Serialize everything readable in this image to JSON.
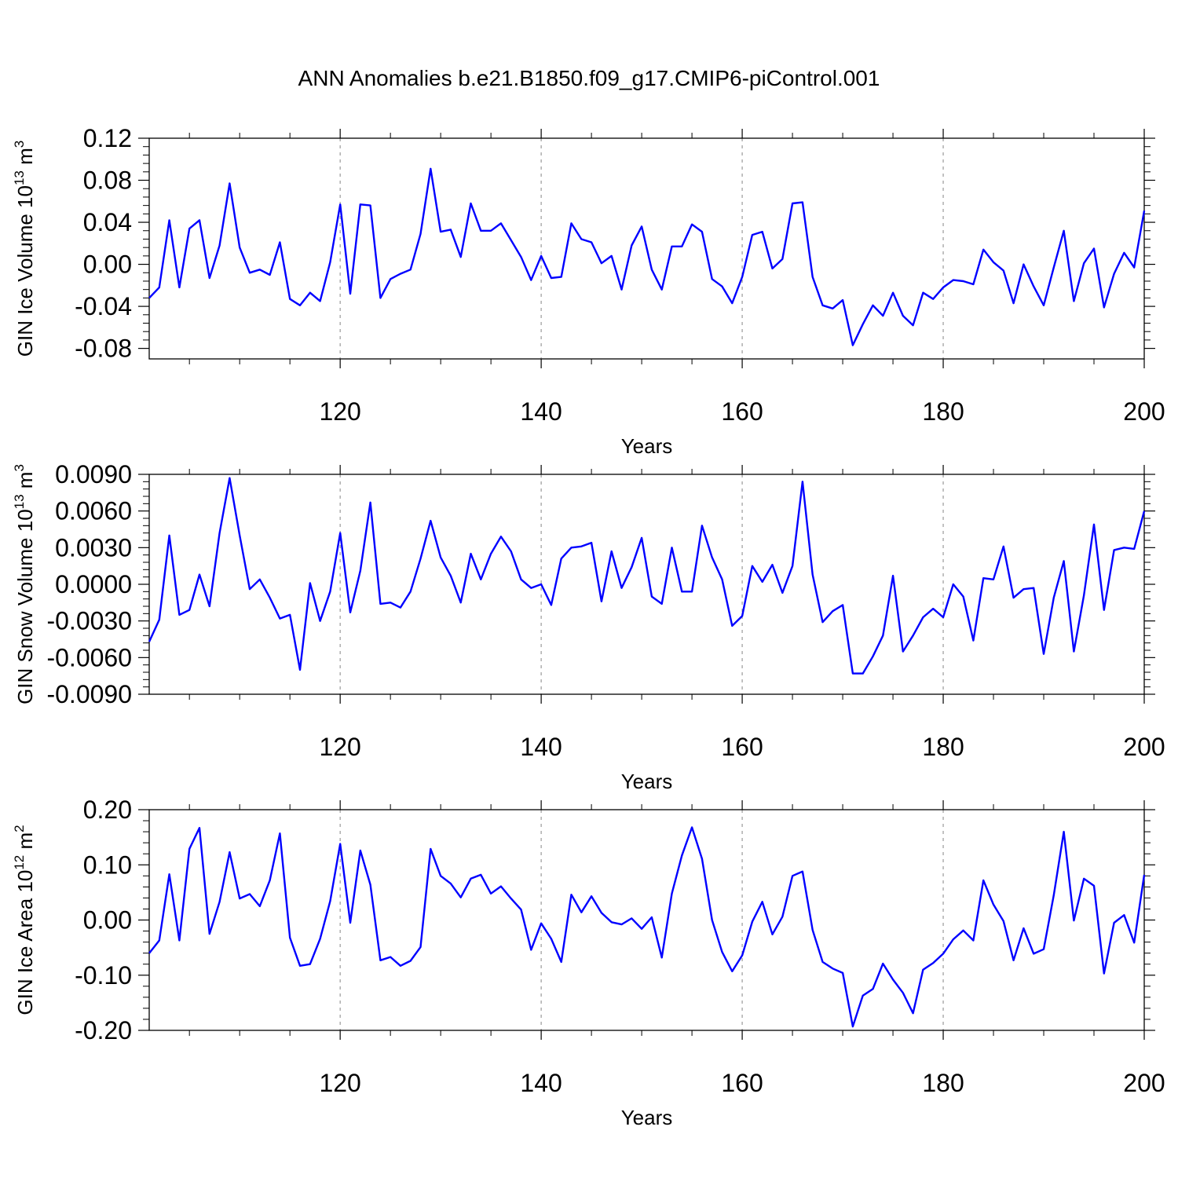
{
  "title": "ANN Anomalies b.e21.B1850.f09_g17.CMIP6-piControl.001",
  "chart_data": [
    {
      "type": "line",
      "ylabel": "GIN Ice Volume 10^13 m^3",
      "ylabel_base": "GIN Ice Volume 10",
      "ylabel_exp": "13",
      "ylabel_unit": " m",
      "ylabel_unit_exp": "3",
      "xlabel": "Years",
      "xlim": [
        101,
        200
      ],
      "ylim": [
        -0.09,
        0.12
      ],
      "xticks": [
        120,
        140,
        160,
        180,
        200
      ],
      "xtick_labels": [
        "120",
        "140",
        "160",
        "180",
        "200"
      ],
      "yticks": [
        -0.08,
        -0.04,
        0.0,
        0.04,
        0.08,
        0.12
      ],
      "ytick_labels": [
        "-0.08",
        "-0.04",
        "0.00",
        "0.04",
        "0.08",
        "0.12"
      ],
      "grid_x": [
        120,
        140,
        160,
        180
      ],
      "color": "#0000ff",
      "values": [
        -0.032,
        -0.022,
        0.042,
        -0.022,
        0.034,
        0.042,
        -0.013,
        0.018,
        0.077,
        0.016,
        -0.008,
        -0.005,
        -0.01,
        0.021,
        -0.033,
        -0.039,
        -0.027,
        -0.035,
        0.002,
        0.057,
        -0.028,
        0.057,
        0.056,
        -0.032,
        -0.014,
        -0.009,
        -0.005,
        0.029,
        0.091,
        0.031,
        0.033,
        0.007,
        0.058,
        0.032,
        0.032,
        0.039,
        0.023,
        0.007,
        -0.015,
        0.008,
        -0.013,
        -0.012,
        0.039,
        0.024,
        0.021,
        0.001,
        0.008,
        -0.024,
        0.018,
        0.036,
        -0.005,
        -0.024,
        0.017,
        0.017,
        0.038,
        0.031,
        -0.014,
        -0.021,
        -0.037,
        -0.012,
        0.028,
        0.031,
        -0.004,
        0.005,
        0.058,
        0.059,
        -0.012,
        -0.039,
        -0.042,
        -0.034,
        -0.077,
        -0.057,
        -0.039,
        -0.049,
        -0.027,
        -0.049,
        -0.058,
        -0.027,
        -0.033,
        -0.022,
        -0.015,
        -0.016,
        -0.019,
        0.014,
        0.002,
        -0.006,
        -0.037,
        0.0,
        -0.021,
        -0.039,
        -0.003,
        0.032,
        -0.035,
        0.001,
        0.015,
        -0.041,
        -0.009,
        0.011,
        -0.003,
        0.051
      ]
    },
    {
      "type": "line",
      "ylabel": "GIN Snow Volume 10^13 m^3",
      "ylabel_base": "GIN Snow Volume 10",
      "ylabel_exp": "13",
      "ylabel_unit": " m",
      "ylabel_unit_exp": "3",
      "xlabel": "Years",
      "xlim": [
        101,
        200
      ],
      "ylim": [
        -0.009,
        0.009
      ],
      "xticks": [
        120,
        140,
        160,
        180,
        200
      ],
      "xtick_labels": [
        "120",
        "140",
        "160",
        "180",
        "200"
      ],
      "yticks": [
        -0.009,
        -0.006,
        -0.003,
        0.0,
        0.003,
        0.006,
        0.009
      ],
      "ytick_labels": [
        "-0.0090",
        "-0.0060",
        "-0.0030",
        "0.0000",
        "0.0030",
        "0.0060",
        "0.0090"
      ],
      "grid_x": [
        120,
        140,
        160,
        180
      ],
      "color": "#0000ff",
      "values": [
        -0.0047,
        -0.0029,
        0.004,
        -0.0025,
        -0.0021,
        0.0008,
        -0.0018,
        0.0042,
        0.0087,
        0.004,
        -0.0004,
        0.0004,
        -0.0011,
        -0.0028,
        -0.0025,
        -0.007,
        0.0001,
        -0.003,
        -0.0006,
        0.0042,
        -0.0023,
        0.0011,
        0.0067,
        -0.0016,
        -0.0015,
        -0.0019,
        -0.0006,
        0.0021,
        0.0052,
        0.0022,
        0.0007,
        -0.0015,
        0.0025,
        0.0004,
        0.0025,
        0.0039,
        0.0027,
        0.0004,
        -0.0003,
        0.0,
        -0.0017,
        0.0021,
        0.003,
        0.0031,
        0.0034,
        -0.0014,
        0.0027,
        -0.0003,
        0.0014,
        0.0038,
        -0.001,
        -0.0016,
        0.003,
        -0.0006,
        -0.0006,
        0.0048,
        0.0022,
        0.0004,
        -0.0034,
        -0.0026,
        0.0015,
        0.0002,
        0.0016,
        -0.0007,
        0.0015,
        0.0084,
        0.0008,
        -0.0031,
        -0.0022,
        -0.0017,
        -0.0073,
        -0.0073,
        -0.0059,
        -0.0042,
        0.0007,
        -0.0055,
        -0.0042,
        -0.0027,
        -0.002,
        -0.0027,
        0.0,
        -0.001,
        -0.0046,
        0.0005,
        0.0004,
        0.0031,
        -0.0011,
        -0.0004,
        -0.0003,
        -0.0057,
        -0.0011,
        0.0019,
        -0.0055,
        -0.0009,
        0.0049,
        -0.0021,
        0.0028,
        0.003,
        0.0029,
        0.006
      ]
    },
    {
      "type": "line",
      "ylabel": "GIN Ice Area 10^12 m^2",
      "ylabel_base": "GIN Ice Area 10",
      "ylabel_exp": "12",
      "ylabel_unit": " m",
      "ylabel_unit_exp": "2",
      "xlabel": "Years",
      "xlim": [
        101,
        200
      ],
      "ylim": [
        -0.2,
        0.2
      ],
      "xticks": [
        120,
        140,
        160,
        180,
        200
      ],
      "xtick_labels": [
        "120",
        "140",
        "160",
        "180",
        "200"
      ],
      "yticks": [
        -0.2,
        -0.1,
        0.0,
        0.1,
        0.2
      ],
      "ytick_labels": [
        "-0.20",
        "-0.10",
        "0.00",
        "0.10",
        "0.20"
      ],
      "grid_x": [
        120,
        140,
        160,
        180
      ],
      "color": "#0000ff",
      "values": [
        -0.06,
        -0.037,
        0.083,
        -0.037,
        0.129,
        0.167,
        -0.025,
        0.033,
        0.123,
        0.039,
        0.047,
        0.025,
        0.072,
        0.157,
        -0.032,
        -0.083,
        -0.08,
        -0.034,
        0.034,
        0.138,
        -0.005,
        0.126,
        0.064,
        -0.073,
        -0.067,
        -0.083,
        -0.074,
        -0.049,
        0.129,
        0.08,
        0.066,
        0.041,
        0.075,
        0.082,
        0.048,
        0.061,
        0.039,
        0.019,
        -0.054,
        -0.006,
        -0.034,
        -0.076,
        0.046,
        0.014,
        0.043,
        0.013,
        -0.004,
        -0.008,
        0.003,
        -0.016,
        0.005,
        -0.068,
        0.048,
        0.117,
        0.168,
        0.111,
        0.0,
        -0.058,
        -0.093,
        -0.064,
        -0.003,
        0.033,
        -0.026,
        0.006,
        0.08,
        0.088,
        -0.018,
        -0.076,
        -0.088,
        -0.096,
        -0.193,
        -0.137,
        -0.125,
        -0.079,
        -0.108,
        -0.132,
        -0.169,
        -0.09,
        -0.078,
        -0.061,
        -0.035,
        -0.019,
        -0.037,
        0.072,
        0.028,
        -0.002,
        -0.073,
        -0.015,
        -0.061,
        -0.053,
        0.045,
        0.16,
        -0.001,
        0.075,
        0.062,
        -0.097,
        -0.005,
        0.009,
        -0.041,
        0.082
      ]
    }
  ]
}
